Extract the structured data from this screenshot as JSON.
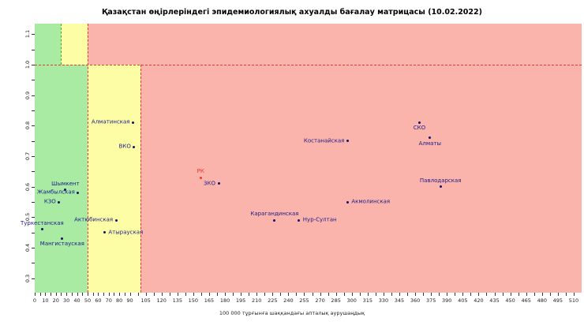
{
  "chart_data": {
    "type": "scatter",
    "title": "Қазақстан өңірлеріндегі эпидемиологиялық ахуалды бағалау матрицасы (10.02.2022)",
    "xlabel": "100 000 тұрғынға шаққандағы апталық аурушаңдық",
    "ylabel": "",
    "xlim": [
      0,
      517.5
    ],
    "ylim": [
      0.253,
      1.134
    ],
    "x_ticks": [
      0,
      10,
      20,
      30,
      40,
      50,
      60,
      70,
      80,
      90,
      105,
      120,
      135,
      150,
      165,
      180,
      195,
      210,
      225,
      240,
      255,
      270,
      285,
      300,
      315,
      330,
      345,
      360,
      375,
      390,
      405,
      420,
      435,
      450,
      465,
      480,
      495,
      510
    ],
    "y_ticks": [
      0.3,
      0.4,
      0.5,
      0.6,
      0.7,
      0.8,
      0.9,
      1.0,
      1.1
    ],
    "grid": false,
    "legend": "none",
    "thresholds": {
      "r_value_line": 1.0,
      "incidence_zone_breaks_above_r1": [
        25,
        50
      ],
      "incidence_zone_breaks_below_r1": [
        50,
        100
      ]
    },
    "zones": [
      {
        "x": [
          null,
          25
        ],
        "y": [
          null,
          1.0
        ],
        "color": "green"
      },
      {
        "x": [
          25,
          50
        ],
        "y": [
          null,
          1.0
        ],
        "color": "yellow"
      },
      {
        "x": [
          50,
          null
        ],
        "y": [
          null,
          1.0
        ],
        "color": "red"
      },
      {
        "x": [
          null,
          50
        ],
        "y": [
          1.0,
          null
        ],
        "color": "green"
      },
      {
        "x": [
          50,
          100
        ],
        "y": [
          1.0,
          null
        ],
        "color": "yellow"
      },
      {
        "x": [
          100,
          null
        ],
        "y": [
          1.0,
          null
        ],
        "color": "red"
      }
    ],
    "lines": [
      {
        "orient": "h",
        "at": 1.0,
        "color": "line_red"
      },
      {
        "orient": "v",
        "at": 50,
        "y": [
          null,
          null
        ],
        "color": "line_red"
      },
      {
        "orient": "v",
        "at": 100,
        "y": [
          1.0,
          null
        ],
        "color": "line_red"
      },
      {
        "orient": "v",
        "at": 25,
        "y": [
          null,
          1.0
        ],
        "color": "line_green"
      }
    ],
    "points": [
      {
        "name": "Алматинская",
        "x": 93,
        "y": 0.81,
        "label_pos": "left",
        "highlight": false
      },
      {
        "name": "ВКО",
        "x": 94,
        "y": 0.73,
        "label_pos": "left",
        "highlight": false
      },
      {
        "name": "Шымкент",
        "x": 29,
        "y": 0.59,
        "label_pos": "above",
        "highlight": false
      },
      {
        "name": "Жамбылская",
        "x": 41,
        "y": 0.58,
        "label_pos": "left",
        "highlight": false
      },
      {
        "name": "КЗО",
        "x": 23,
        "y": 0.55,
        "label_pos": "left",
        "highlight": false
      },
      {
        "name": "Туркестанская",
        "x": 7,
        "y": 0.46,
        "label_pos": "above",
        "highlight": false
      },
      {
        "name": "Мангистауская",
        "x": 26,
        "y": 0.43,
        "label_pos": "below",
        "highlight": false
      },
      {
        "name": "Актюбинская",
        "x": 77,
        "y": 0.49,
        "label_pos": "left",
        "highlight": false
      },
      {
        "name": "Атырауская",
        "x": 66,
        "y": 0.45,
        "label_pos": "right",
        "highlight": false
      },
      {
        "name": "РК",
        "x": 157,
        "y": 0.63,
        "label_pos": "above",
        "highlight": true
      },
      {
        "name": "ЗКО",
        "x": 174,
        "y": 0.61,
        "label_pos": "left",
        "highlight": false
      },
      {
        "name": "Карагандинская",
        "x": 227,
        "y": 0.49,
        "label_pos": "above",
        "highlight": false
      },
      {
        "name": "Нур-Султан",
        "x": 250,
        "y": 0.49,
        "label_pos": "right",
        "highlight": false
      },
      {
        "name": "Акмолинская",
        "x": 296,
        "y": 0.55,
        "label_pos": "right",
        "highlight": false
      },
      {
        "name": "Костанайская",
        "x": 296,
        "y": 0.75,
        "label_pos": "left",
        "highlight": false
      },
      {
        "name": "СКО",
        "x": 364,
        "y": 0.81,
        "label_pos": "below",
        "highlight": false
      },
      {
        "name": "Алматы",
        "x": 374,
        "y": 0.76,
        "label_pos": "below",
        "highlight": false
      },
      {
        "name": "Павлодарская",
        "x": 384,
        "y": 0.6,
        "label_pos": "above",
        "highlight": false
      }
    ],
    "colors": {
      "green": "#a9eba3",
      "yellow": "#fdfda5",
      "red": "#fbb4ab",
      "line_red": "#e8392b",
      "line_green": "#3da13d",
      "dot": "#10106b",
      "dot_highlight": "#e8392b",
      "label": "#1b1b8a",
      "label_highlight": "#e8392b",
      "tick": "#333333"
    }
  }
}
